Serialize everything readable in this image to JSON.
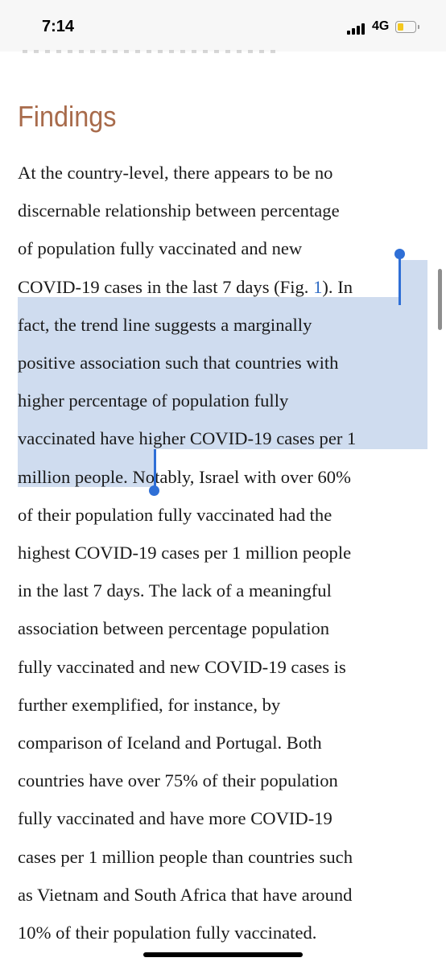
{
  "status_bar": {
    "time": "7:14",
    "network": "4G",
    "battery_level": 0.35,
    "signal_bars": 4
  },
  "article": {
    "heading": "Findings",
    "lines": [
      {
        "segments": [
          {
            "text": "At the country-level, there appears to be no",
            "type": "plain"
          }
        ]
      },
      {
        "segments": [
          {
            "text": "discernable relationship between percentage",
            "type": "plain"
          }
        ]
      },
      {
        "segments": [
          {
            "text": "of population fully vaccinated and new",
            "type": "plain"
          }
        ]
      },
      {
        "segments": [
          {
            "text": "COVID-19 cases in the last 7 days (Fig. ",
            "type": "plain"
          },
          {
            "text": "1",
            "type": "link"
          },
          {
            "text": "). ",
            "type": "plain"
          },
          {
            "text": "In",
            "type": "plain"
          }
        ]
      },
      {
        "segments": [
          {
            "text": "fact, the trend line suggests a marginally",
            "type": "plain"
          }
        ]
      },
      {
        "segments": [
          {
            "text": "positive association such that countries with",
            "type": "plain"
          }
        ]
      },
      {
        "segments": [
          {
            "text": "higher percentage of population fully",
            "type": "plain"
          }
        ]
      },
      {
        "segments": [
          {
            "text": "vaccinated have higher COVID-19 cases per 1",
            "type": "plain"
          }
        ]
      },
      {
        "segments": [
          {
            "text": "million people. ",
            "type": "plain"
          },
          {
            "text": "Notably, Israel with over 60%",
            "type": "plain"
          }
        ]
      },
      {
        "segments": [
          {
            "text": "of their population fully vaccinated had the",
            "type": "plain"
          }
        ]
      },
      {
        "segments": [
          {
            "text": "highest COVID-19 cases per 1 million people",
            "type": "plain"
          }
        ]
      },
      {
        "segments": [
          {
            "text": "in the last 7 days. The lack of a meaningful",
            "type": "plain"
          }
        ]
      },
      {
        "segments": [
          {
            "text": "association between percentage population",
            "type": "plain"
          }
        ]
      },
      {
        "segments": [
          {
            "text": "fully vaccinated and new COVID-19 cases is",
            "type": "plain"
          }
        ]
      },
      {
        "segments": [
          {
            "text": "further exemplified, for instance, by",
            "type": "plain"
          }
        ]
      },
      {
        "segments": [
          {
            "text": "comparison of Iceland and Portugal. Both",
            "type": "plain"
          }
        ]
      },
      {
        "segments": [
          {
            "text": "countries have over 75% of their population",
            "type": "plain"
          }
        ]
      },
      {
        "segments": [
          {
            "text": "fully vaccinated and have more COVID-19",
            "type": "plain"
          }
        ]
      },
      {
        "segments": [
          {
            "text": "cases per 1 million people than countries such",
            "type": "plain"
          }
        ]
      },
      {
        "segments": [
          {
            "text": "as Vietnam and South Africa that have around",
            "type": "plain"
          }
        ]
      },
      {
        "segments": [
          {
            "text": "10% of their population fully vaccinated.",
            "type": "plain"
          }
        ]
      }
    ]
  },
  "colors": {
    "heading": "#a86b4b",
    "selection": "#cfdcef",
    "handle": "#2f6fd6",
    "link": "#2f6bc4"
  }
}
